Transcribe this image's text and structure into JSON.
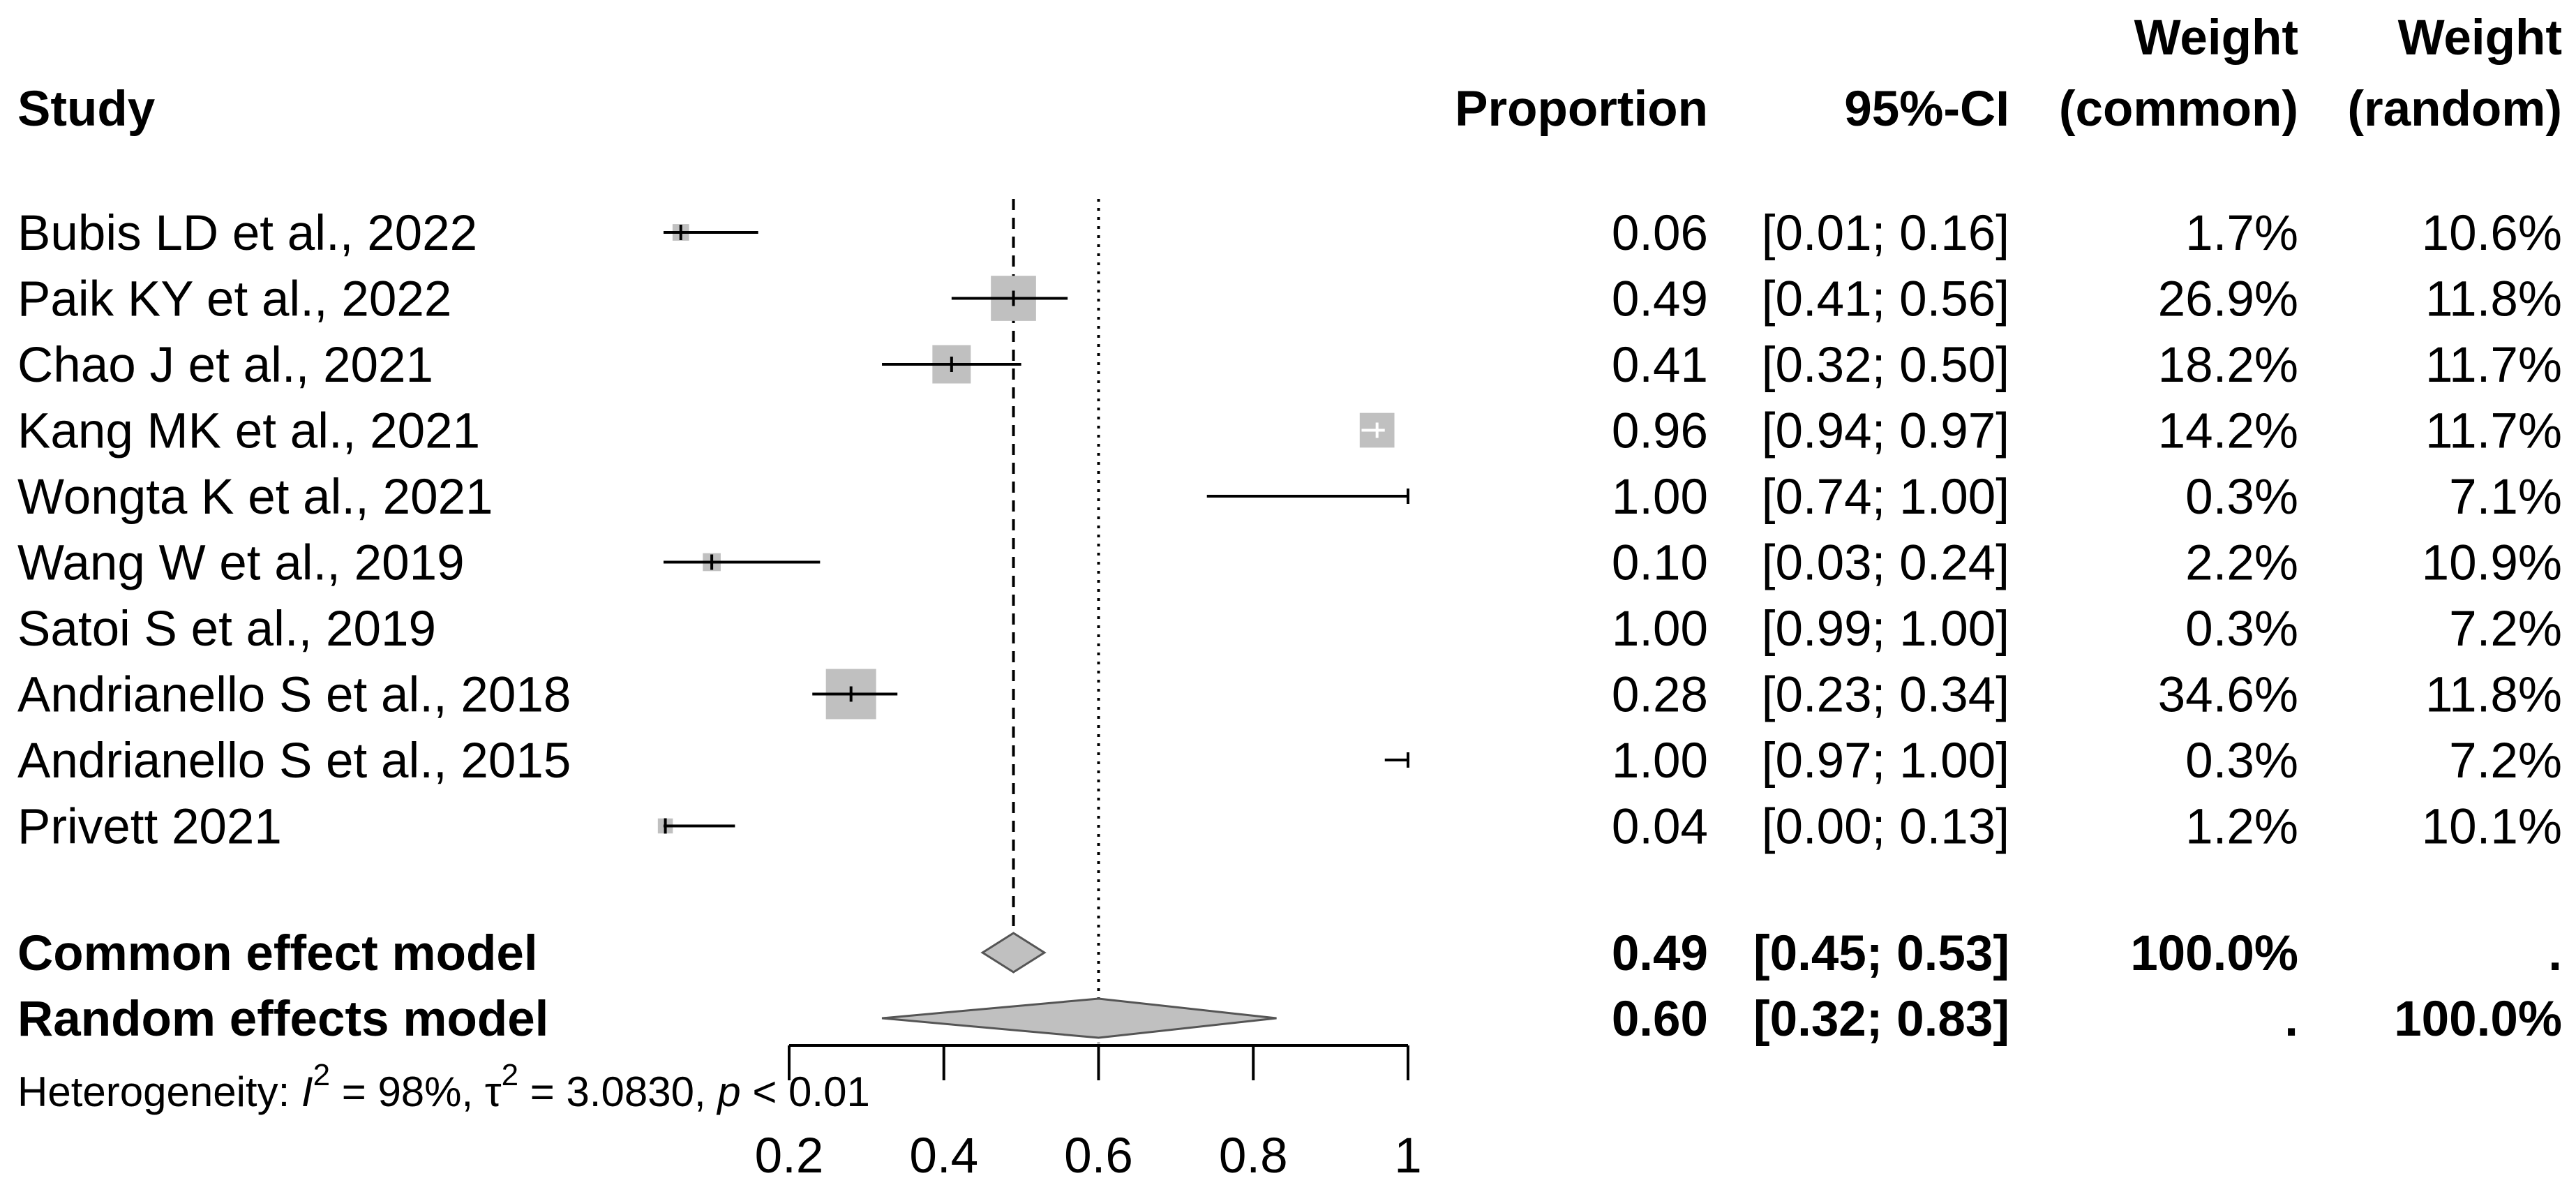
{
  "chart_data": {
    "type": "forest",
    "title": "",
    "x_measure": "Proportion",
    "xlim": [
      0.2,
      1
    ],
    "xticks": [
      0.2,
      0.4,
      0.6,
      0.8,
      1
    ],
    "xtick_labels": [
      "0.2",
      "0.4",
      "0.6",
      "0.8",
      "1"
    ],
    "common_line": 0.49,
    "random_line": 0.6,
    "headers": {
      "study": "Study",
      "proportion": "Proportion",
      "ci": "95%-CI",
      "weight_common": [
        "Weight",
        "(common)"
      ],
      "weight_random": [
        "Weight",
        "(random)"
      ]
    },
    "studies": [
      {
        "name": "Bubis LD et al., 2022",
        "est": 0.06,
        "lo": 0.01,
        "hi": 0.16,
        "prop_text": "0.06",
        "ci_text": "[0.01; 0.16]",
        "w_common": "1.7%",
        "w_random": "10.6%",
        "w": 1.7
      },
      {
        "name": "Paik KY et al., 2022",
        "est": 0.49,
        "lo": 0.41,
        "hi": 0.56,
        "prop_text": "0.49",
        "ci_text": "[0.41; 0.56]",
        "w_common": "26.9%",
        "w_random": "11.8%",
        "w": 26.9
      },
      {
        "name": "Chao J et al., 2021",
        "est": 0.41,
        "lo": 0.32,
        "hi": 0.5,
        "prop_text": "0.41",
        "ci_text": "[0.32; 0.50]",
        "w_common": "18.2%",
        "w_random": "11.7%",
        "w": 18.2
      },
      {
        "name": "Kang MK et al., 2021",
        "est": 0.96,
        "lo": 0.94,
        "hi": 0.97,
        "prop_text": "0.96",
        "ci_text": "[0.94; 0.97]",
        "w_common": "14.2%",
        "w_random": "11.7%",
        "w": 14.2
      },
      {
        "name": "Wongta K et al., 2021",
        "est": 1.0,
        "lo": 0.74,
        "hi": 1.0,
        "prop_text": "1.00",
        "ci_text": "[0.74; 1.00]",
        "w_common": "0.3%",
        "w_random": "7.1%",
        "w": 0.3
      },
      {
        "name": "Wang W et al., 2019",
        "est": 0.1,
        "lo": 0.03,
        "hi": 0.24,
        "prop_text": "0.10",
        "ci_text": "[0.03; 0.24]",
        "w_common": "2.2%",
        "w_random": "10.9%",
        "w": 2.2
      },
      {
        "name": "Satoi S et al., 2019",
        "est": 1.0,
        "lo": 0.99,
        "hi": 1.0,
        "prop_text": "1.00",
        "ci_text": "[0.99; 1.00]",
        "w_common": "0.3%",
        "w_random": "7.2%",
        "w": 0.3
      },
      {
        "name": "Andrianello S et al., 2018",
        "est": 0.28,
        "lo": 0.23,
        "hi": 0.34,
        "prop_text": "0.28",
        "ci_text": "[0.23; 0.34]",
        "w_common": "34.6%",
        "w_random": "11.8%",
        "w": 34.6
      },
      {
        "name": "Andrianello S et al., 2015",
        "est": 1.0,
        "lo": 0.97,
        "hi": 1.0,
        "prop_text": "1.00",
        "ci_text": "[0.97; 1.00]",
        "w_common": "0.3%",
        "w_random": "7.2%",
        "w": 0.3
      },
      {
        "name": "Privett 2021",
        "est": 0.04,
        "lo": 0.0,
        "hi": 0.13,
        "prop_text": "0.04",
        "ci_text": "[0.00; 0.13]",
        "w_common": "1.2%",
        "w_random": "10.1%",
        "w": 1.2
      }
    ],
    "summaries": [
      {
        "name": "Common effect model",
        "est": 0.49,
        "lo": 0.45,
        "hi": 0.53,
        "prop_text": "0.49",
        "ci_text": "[0.45; 0.53]",
        "w_common": "100.0%",
        "w_random": "."
      },
      {
        "name": "Random effects model",
        "est": 0.6,
        "lo": 0.32,
        "hi": 0.83,
        "prop_text": "0.60",
        "ci_text": "[0.32; 0.83]",
        "w_common": ".",
        "w_random": "100.0%"
      }
    ],
    "heterogeneity": {
      "prefix": "Heterogeneity: ",
      "i2_symbol": "I",
      "i2_value": " = 98%, ",
      "tau_symbol": "τ",
      "tau_value": " = 3.0830, ",
      "p_symbol": "p",
      "p_value": " < 0.01",
      "exponent": "2"
    },
    "colors": {
      "box": "#c0c0c0",
      "diamond": "#c0c0c0",
      "line": "#000000",
      "light_line": "#ffffff"
    }
  }
}
